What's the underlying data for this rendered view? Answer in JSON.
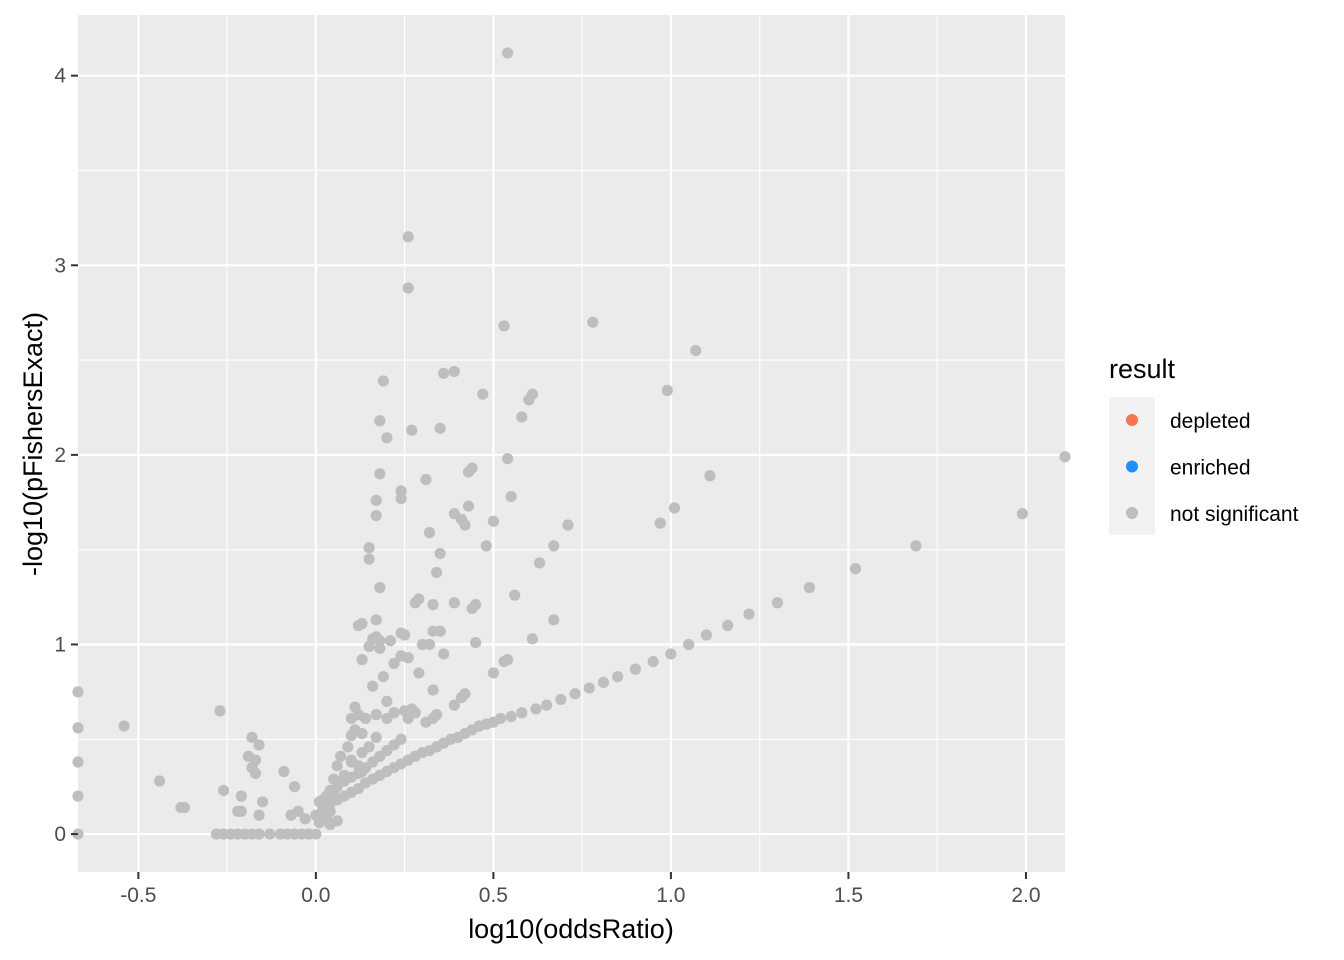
{
  "chart_data": {
    "type": "scatter",
    "xlabel": "log10(oddsRatio)",
    "ylabel": "-log10(pFishersExact)",
    "xlim": [
      -0.67,
      2.11
    ],
    "ylim": [
      -0.2,
      4.32
    ],
    "x_ticks": [
      -0.5,
      0.0,
      0.5,
      1.0,
      1.5,
      2.0
    ],
    "x_tick_labels": [
      "-0.5",
      "0.0",
      "0.5",
      "1.0",
      "1.5",
      "2.0"
    ],
    "y_ticks": [
      0,
      1,
      2,
      3,
      4
    ],
    "y_tick_labels": [
      "0",
      "1",
      "2",
      "3",
      "4"
    ],
    "grid": true,
    "legend": {
      "title": "result",
      "position": "right",
      "entries": [
        {
          "label": "depleted",
          "color": "#F8764E"
        },
        {
          "label": "enriched",
          "color": "#1E8FFF"
        },
        {
          "label": "not significant",
          "color": "#BEBEBE"
        }
      ]
    },
    "colors": {
      "panel": "#EBEBEB",
      "grid": "#FFFFFF",
      "point": "#BEBEBE"
    },
    "series": [
      {
        "name": "not significant",
        "points": [
          [
            0.54,
            4.12
          ],
          [
            0.26,
            3.15
          ],
          [
            0.26,
            2.88
          ],
          [
            0.78,
            2.7
          ],
          [
            0.53,
            2.68
          ],
          [
            1.07,
            2.55
          ],
          [
            0.19,
            2.39
          ],
          [
            0.36,
            2.43
          ],
          [
            0.39,
            2.44
          ],
          [
            0.99,
            2.34
          ],
          [
            0.47,
            2.32
          ],
          [
            0.61,
            2.32
          ],
          [
            0.6,
            2.29
          ],
          [
            0.58,
            2.2
          ],
          [
            0.18,
            2.18
          ],
          [
            0.27,
            2.13
          ],
          [
            0.35,
            2.14
          ],
          [
            0.2,
            2.09
          ],
          [
            0.54,
            1.98
          ],
          [
            0.44,
            1.93
          ],
          [
            0.43,
            1.91
          ],
          [
            0.18,
            1.9
          ],
          [
            1.11,
            1.89
          ],
          [
            0.31,
            1.87
          ],
          [
            0.24,
            1.81
          ],
          [
            0.55,
            1.78
          ],
          [
            0.24,
            1.77
          ],
          [
            0.17,
            1.76
          ],
          [
            1.01,
            1.72
          ],
          [
            0.43,
            1.73
          ],
          [
            0.39,
            1.69
          ],
          [
            0.17,
            1.68
          ],
          [
            0.41,
            1.66
          ],
          [
            0.5,
            1.65
          ],
          [
            0.97,
            1.64
          ],
          [
            0.42,
            1.63
          ],
          [
            0.71,
            1.63
          ],
          [
            0.32,
            1.59
          ],
          [
            0.67,
            1.52
          ],
          [
            0.48,
            1.52
          ],
          [
            0.15,
            1.51
          ],
          [
            0.35,
            1.48
          ],
          [
            0.15,
            1.45
          ],
          [
            0.63,
            1.43
          ],
          [
            0.34,
            1.38
          ],
          [
            0.18,
            1.3
          ],
          [
            0.56,
            1.26
          ],
          [
            0.29,
            1.24
          ],
          [
            0.28,
            1.22
          ],
          [
            0.39,
            1.22
          ],
          [
            0.45,
            1.21
          ],
          [
            0.33,
            1.21
          ],
          [
            0.44,
            1.19
          ],
          [
            0.17,
            1.13
          ],
          [
            0.67,
            1.13
          ],
          [
            0.13,
            1.11
          ],
          [
            0.12,
            1.1
          ],
          [
            0.33,
            1.07
          ],
          [
            0.35,
            1.07
          ],
          [
            0.24,
            1.06
          ],
          [
            0.25,
            1.05
          ],
          [
            0.17,
            1.04
          ],
          [
            0.16,
            1.03
          ],
          [
            0.21,
            1.02
          ],
          [
            0.18,
            1.02
          ],
          [
            0.3,
            1.0
          ],
          [
            0.45,
            1.01
          ],
          [
            0.61,
            1.03
          ],
          [
            0.32,
            1.0
          ],
          [
            0.15,
            0.99
          ],
          [
            0.18,
            0.98
          ],
          [
            0.36,
            0.95
          ],
          [
            0.24,
            0.94
          ],
          [
            0.26,
            0.93
          ],
          [
            0.13,
            0.92
          ],
          [
            0.54,
            0.92
          ],
          [
            0.53,
            0.91
          ],
          [
            0.22,
            0.9
          ],
          [
            0.5,
            0.85
          ],
          [
            0.29,
            0.85
          ],
          [
            0.19,
            0.83
          ],
          [
            0.16,
            0.78
          ],
          [
            0.33,
            0.76
          ],
          [
            0.42,
            0.74
          ],
          [
            0.41,
            0.72
          ],
          [
            0.2,
            0.7
          ],
          [
            0.39,
            0.68
          ],
          [
            0.11,
            0.67
          ],
          [
            0.27,
            0.66
          ],
          [
            0.25,
            0.65
          ],
          [
            0.28,
            0.64
          ],
          [
            0.22,
            0.64
          ],
          [
            0.12,
            0.63
          ],
          [
            0.17,
            0.63
          ],
          [
            0.2,
            0.61
          ],
          [
            0.1,
            0.61
          ],
          [
            0.14,
            0.61
          ],
          [
            0.26,
            0.61
          ],
          [
            0.34,
            0.63
          ],
          [
            0.33,
            0.61
          ],
          [
            0.31,
            0.59
          ],
          [
            0.11,
            0.55
          ],
          [
            0.1,
            0.52
          ],
          [
            0.13,
            0.53
          ],
          [
            0.17,
            0.51
          ],
          [
            0.09,
            0.46
          ],
          [
            0.15,
            0.46
          ],
          [
            0.13,
            0.43
          ],
          [
            0.07,
            0.41
          ],
          [
            0.1,
            0.39
          ],
          [
            0.06,
            0.36
          ],
          [
            0.1,
            0.38
          ],
          [
            0.12,
            0.36
          ],
          [
            0.13,
            0.33
          ],
          [
            0.08,
            0.31
          ],
          [
            0.05,
            0.29
          ],
          [
            0.06,
            0.27
          ],
          [
            0.04,
            0.23
          ],
          [
            0.05,
            0.21
          ],
          [
            0.03,
            0.2
          ],
          [
            0.02,
            0.18
          ],
          [
            0.01,
            0.17
          ],
          [
            0.03,
            0.15
          ],
          [
            0.02,
            0.13
          ],
          [
            0.04,
            0.12
          ],
          [
            0.01,
            0.1
          ],
          [
            0.02,
            0.09
          ],
          [
            0.03,
            0.08
          ],
          [
            0.01,
            0.06
          ],
          [
            0.06,
            0.07
          ],
          [
            0.04,
            0.05
          ],
          [
            -0.09,
            0.33
          ],
          [
            -0.06,
            0.25
          ],
          [
            -0.05,
            0.12
          ],
          [
            -0.03,
            0.08
          ],
          [
            -0.07,
            0.1
          ],
          [
            -0.16,
            0.47
          ],
          [
            -0.18,
            0.51
          ],
          [
            -0.19,
            0.41
          ],
          [
            -0.17,
            0.39
          ],
          [
            -0.18,
            0.35
          ],
          [
            -0.17,
            0.32
          ],
          [
            -0.15,
            0.17
          ],
          [
            -0.16,
            0.1
          ],
          [
            -0.21,
            0.2
          ],
          [
            -0.26,
            0.23
          ],
          [
            -0.22,
            0.12
          ],
          [
            -0.21,
            0.12
          ],
          [
            -0.27,
            0.65
          ],
          [
            -0.44,
            0.28
          ],
          [
            -0.38,
            0.14
          ],
          [
            -0.37,
            0.14
          ],
          [
            -0.54,
            0.57
          ],
          [
            -0.67,
            0.75
          ],
          [
            -0.67,
            0.56
          ],
          [
            -0.67,
            0.38
          ],
          [
            -0.67,
            0.2
          ],
          [
            -0.67,
            0.0
          ],
          [
            -0.28,
            0.0
          ],
          [
            -0.26,
            0.0
          ],
          [
            -0.24,
            0.0
          ],
          [
            -0.22,
            0.0
          ],
          [
            -0.2,
            0.0
          ],
          [
            -0.18,
            0.0
          ],
          [
            -0.16,
            0.0
          ],
          [
            -0.13,
            0.0
          ],
          [
            -0.1,
            0.0
          ],
          [
            -0.08,
            0.0
          ],
          [
            -0.06,
            0.0
          ],
          [
            -0.04,
            0.0
          ],
          [
            -0.02,
            0.0
          ],
          [
            0.0,
            0.0
          ],
          [
            0.0,
            0.1
          ],
          [
            0.02,
            0.14
          ],
          [
            0.04,
            0.16
          ],
          [
            0.06,
            0.18
          ],
          [
            0.08,
            0.2
          ],
          [
            0.1,
            0.22
          ],
          [
            0.12,
            0.24
          ],
          [
            0.14,
            0.27
          ],
          [
            0.16,
            0.29
          ],
          [
            0.18,
            0.31
          ],
          [
            0.2,
            0.33
          ],
          [
            0.22,
            0.35
          ],
          [
            0.24,
            0.37
          ],
          [
            0.26,
            0.39
          ],
          [
            0.28,
            0.41
          ],
          [
            0.3,
            0.43
          ],
          [
            0.32,
            0.44
          ],
          [
            0.34,
            0.46
          ],
          [
            0.36,
            0.48
          ],
          [
            0.38,
            0.5
          ],
          [
            0.4,
            0.51
          ],
          [
            0.42,
            0.53
          ],
          [
            0.44,
            0.55
          ],
          [
            0.46,
            0.57
          ],
          [
            0.48,
            0.58
          ],
          [
            0.5,
            0.59
          ],
          [
            0.52,
            0.61
          ],
          [
            0.55,
            0.62
          ],
          [
            0.58,
            0.64
          ],
          [
            0.62,
            0.66
          ],
          [
            0.65,
            0.68
          ],
          [
            0.69,
            0.71
          ],
          [
            0.73,
            0.74
          ],
          [
            0.77,
            0.77
          ],
          [
            0.81,
            0.8
          ],
          [
            0.85,
            0.83
          ],
          [
            0.9,
            0.87
          ],
          [
            0.95,
            0.91
          ],
          [
            1.0,
            0.95
          ],
          [
            1.05,
            1.0
          ],
          [
            1.1,
            1.05
          ],
          [
            1.16,
            1.1
          ],
          [
            1.22,
            1.16
          ],
          [
            1.3,
            1.22
          ],
          [
            1.39,
            1.3
          ],
          [
            1.52,
            1.4
          ],
          [
            1.69,
            1.52
          ],
          [
            1.99,
            1.69
          ],
          [
            2.11,
            1.99
          ],
          [
            0.02,
            0.18
          ],
          [
            0.04,
            0.22
          ],
          [
            0.06,
            0.25
          ],
          [
            0.08,
            0.28
          ],
          [
            0.1,
            0.3
          ],
          [
            0.12,
            0.32
          ],
          [
            0.14,
            0.35
          ],
          [
            0.16,
            0.38
          ],
          [
            0.18,
            0.41
          ],
          [
            0.2,
            0.44
          ],
          [
            0.22,
            0.47
          ],
          [
            0.24,
            0.5
          ]
        ]
      }
    ]
  }
}
